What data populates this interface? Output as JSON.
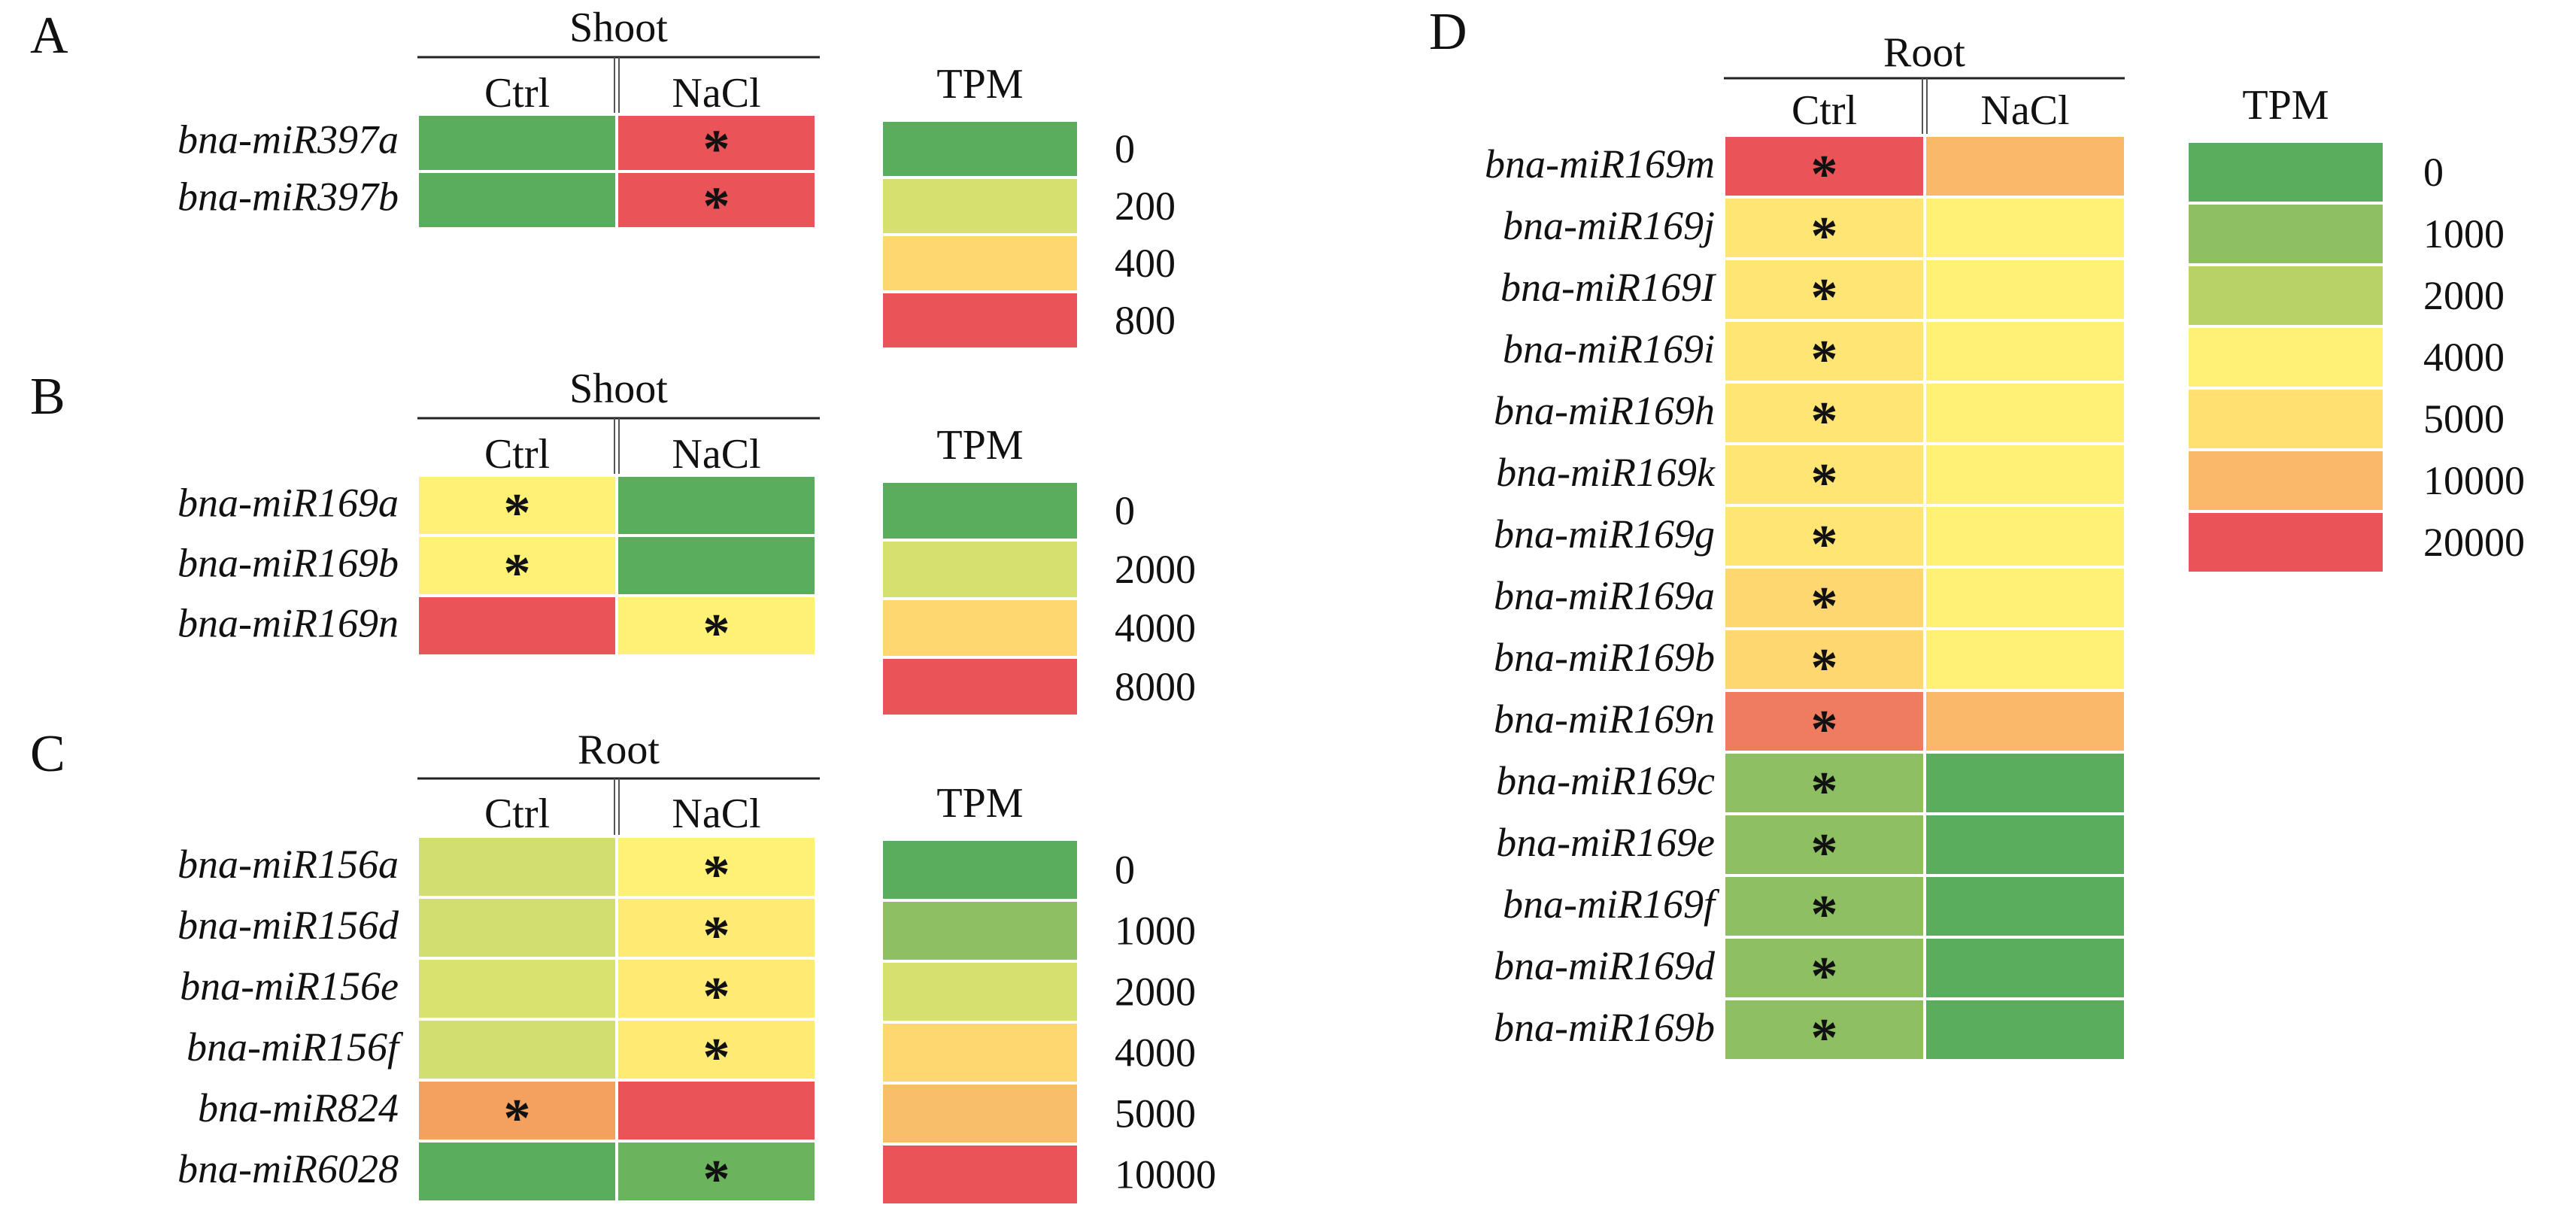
{
  "colors": {
    "green": "#5aad5c",
    "light_green": "#8ec063",
    "yellow_green": "#d5e06f",
    "yellow": "#fff176",
    "light_orange": "#ffd770",
    "orange": "#f7b367",
    "red": "#ea5458"
  },
  "chart_data": [
    {
      "type": "heatmap",
      "panel": "A",
      "title": "Shoot",
      "columns": [
        "Ctrl",
        "NaCl"
      ],
      "rows": [
        "bna-miR397a",
        "bna-miR397b"
      ],
      "cells": [
        [
          {
            "color": "#5aad5c",
            "star": ""
          },
          {
            "color": "#ea5458",
            "star": "*"
          }
        ],
        [
          {
            "color": "#5aad5c",
            "star": ""
          },
          {
            "color": "#ea5458",
            "star": "*"
          }
        ]
      ],
      "legend": {
        "title": "TPM",
        "items": [
          {
            "value": "0",
            "color": "#5aad5c"
          },
          {
            "value": "200",
            "color": "#d5e06f"
          },
          {
            "value": "400",
            "color": "#ffd770"
          },
          {
            "value": "800",
            "color": "#ea5458"
          }
        ]
      }
    },
    {
      "type": "heatmap",
      "panel": "B",
      "title": "Shoot",
      "columns": [
        "Ctrl",
        "NaCl"
      ],
      "rows": [
        "bna-miR169a",
        "bna-miR169b",
        "bna-miR169n"
      ],
      "cells": [
        [
          {
            "color": "#fff176",
            "star": "*"
          },
          {
            "color": "#5aad5c",
            "star": ""
          }
        ],
        [
          {
            "color": "#fff176",
            "star": "*"
          },
          {
            "color": "#5aad5c",
            "star": ""
          }
        ],
        [
          {
            "color": "#ea5458",
            "star": ""
          },
          {
            "color": "#fff176",
            "star": "*"
          }
        ]
      ],
      "legend": {
        "title": "TPM",
        "items": [
          {
            "value": "0",
            "color": "#5aad5c"
          },
          {
            "value": "2000",
            "color": "#d5e06f"
          },
          {
            "value": "4000",
            "color": "#ffd770"
          },
          {
            "value": "8000",
            "color": "#ea5458"
          }
        ]
      }
    },
    {
      "type": "heatmap",
      "panel": "C",
      "title": "Root",
      "columns": [
        "Ctrl",
        "NaCl"
      ],
      "rows": [
        "bna-miR156a",
        "bna-miR156d",
        "bna-miR156e",
        "bna-miR156f",
        "bna-miR824",
        "bna-miR6028"
      ],
      "cells": [
        [
          {
            "color": "#d2df70",
            "star": ""
          },
          {
            "color": "#fff176",
            "star": "*"
          }
        ],
        [
          {
            "color": "#d2df70",
            "star": ""
          },
          {
            "color": "#ffea74",
            "star": "*"
          }
        ],
        [
          {
            "color": "#d9e16f",
            "star": ""
          },
          {
            "color": "#ffea74",
            "star": "*"
          }
        ],
        [
          {
            "color": "#d2df70",
            "star": ""
          },
          {
            "color": "#ffea74",
            "star": "*"
          }
        ],
        [
          {
            "color": "#f4a05f",
            "star": "*"
          },
          {
            "color": "#ea5458",
            "star": ""
          }
        ],
        [
          {
            "color": "#5aad5c",
            "star": ""
          },
          {
            "color": "#6cb35e",
            "star": "*"
          }
        ]
      ],
      "legend": {
        "title": "TPM",
        "items": [
          {
            "value": "0",
            "color": "#5aad5c"
          },
          {
            "value": "1000",
            "color": "#8ec063"
          },
          {
            "value": "2000",
            "color": "#d5e06f"
          },
          {
            "value": "4000",
            "color": "#ffd770"
          },
          {
            "value": "5000",
            "color": "#f9be69"
          },
          {
            "value": "10000",
            "color": "#ea5458"
          }
        ]
      }
    },
    {
      "type": "heatmap",
      "panel": "D",
      "title": "Root",
      "columns": [
        "Ctrl",
        "NaCl"
      ],
      "rows": [
        "bna-miR169m",
        "bna-miR169j",
        "bna-miR169I",
        "bna-miR169i",
        "bna-miR169h",
        "bna-miR169k",
        "bna-miR169g",
        "bna-miR169a",
        "bna-miR169b",
        "bna-miR169n",
        "bna-miR169c",
        "bna-miR169e",
        "bna-miR169f",
        "bna-miR169d",
        "bna-miR169b"
      ],
      "cells": [
        [
          {
            "color": "#ea5458",
            "star": "*"
          },
          {
            "color": "#f9b86a",
            "star": ""
          }
        ],
        [
          {
            "color": "#ffe574",
            "star": "*"
          },
          {
            "color": "#fff176",
            "star": ""
          }
        ],
        [
          {
            "color": "#ffe574",
            "star": "*"
          },
          {
            "color": "#fff176",
            "star": ""
          }
        ],
        [
          {
            "color": "#ffe574",
            "star": "*"
          },
          {
            "color": "#fff176",
            "star": ""
          }
        ],
        [
          {
            "color": "#ffe574",
            "star": "*"
          },
          {
            "color": "#fff176",
            "star": ""
          }
        ],
        [
          {
            "color": "#ffe574",
            "star": "*"
          },
          {
            "color": "#fff176",
            "star": ""
          }
        ],
        [
          {
            "color": "#ffe574",
            "star": "*"
          },
          {
            "color": "#fff176",
            "star": ""
          }
        ],
        [
          {
            "color": "#ffd770",
            "star": "*"
          },
          {
            "color": "#fff176",
            "star": ""
          }
        ],
        [
          {
            "color": "#ffd770",
            "star": "*"
          },
          {
            "color": "#fff176",
            "star": ""
          }
        ],
        [
          {
            "color": "#ef7b60",
            "star": "*"
          },
          {
            "color": "#f9b86a",
            "star": ""
          }
        ],
        [
          {
            "color": "#8ec063",
            "star": "*"
          },
          {
            "color": "#5aad5c",
            "star": ""
          }
        ],
        [
          {
            "color": "#8ec063",
            "star": "*"
          },
          {
            "color": "#5aad5c",
            "star": ""
          }
        ],
        [
          {
            "color": "#8ec063",
            "star": "*"
          },
          {
            "color": "#5aad5c",
            "star": ""
          }
        ],
        [
          {
            "color": "#8ec063",
            "star": "*"
          },
          {
            "color": "#5aad5c",
            "star": ""
          }
        ],
        [
          {
            "color": "#8ec063",
            "star": "*"
          },
          {
            "color": "#5aad5c",
            "star": ""
          }
        ]
      ],
      "legend": {
        "title": "TPM",
        "items": [
          {
            "value": "0",
            "color": "#5aad5c"
          },
          {
            "value": "1000",
            "color": "#8ec063"
          },
          {
            "value": "2000",
            "color": "#b8d268"
          },
          {
            "value": "4000",
            "color": "#fff176"
          },
          {
            "value": "5000",
            "color": "#ffe070"
          },
          {
            "value": "10000",
            "color": "#f9b86a"
          },
          {
            "value": "20000",
            "color": "#ea5458"
          }
        ]
      }
    }
  ]
}
